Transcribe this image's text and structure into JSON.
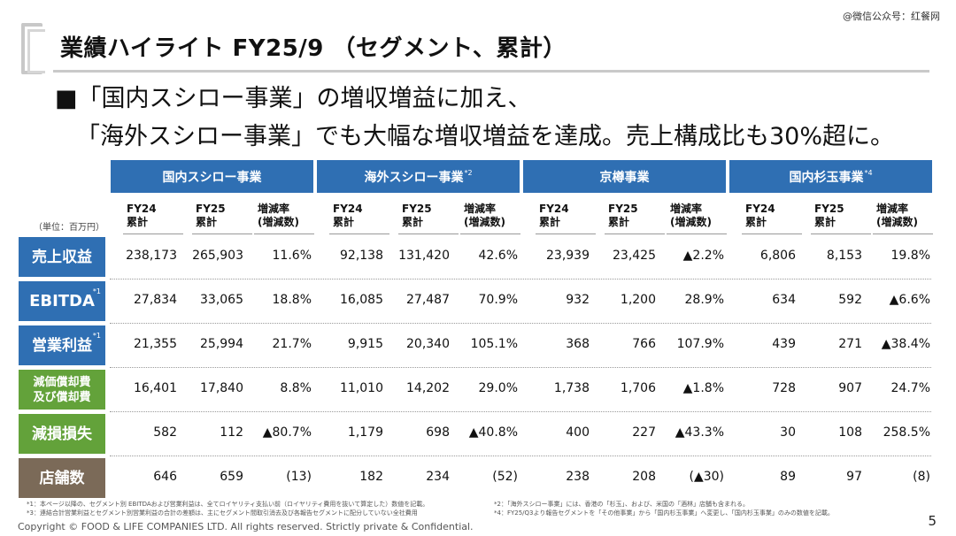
{
  "watermark": "@微信公众号：红餐网",
  "title": "業績ハイライト FY25/9 （セグメント、累計）",
  "headline": {
    "line1": "■「国内スシロー事業」の増収増益に加え、",
    "line2": "「海外スシロー事業」でも大幅な増収増益を達成。売上構成比も30%超に。"
  },
  "unit": "（単位：百万円）",
  "colors": {
    "segment_header": "#2f6fb3",
    "label_blue": "#2f6fb3",
    "label_green": "#63a23a",
    "label_brown": "#7b6a58"
  },
  "segments": [
    {
      "name": "国内スシロー事業",
      "note": ""
    },
    {
      "name": "海外スシロー事業",
      "note": "*2"
    },
    {
      "name": "京樽事業",
      "note": ""
    },
    {
      "name": "国内杉玉事業",
      "note": "*4"
    }
  ],
  "columns": [
    {
      "l1": "FY24",
      "l2": "累計"
    },
    {
      "l1": "FY25",
      "l2": "累計"
    },
    {
      "l1": "増減率",
      "l2": "(増減数)"
    }
  ],
  "rows": [
    {
      "label": "売上収益",
      "note": "",
      "color": "#2f6fb3",
      "values": [
        "238,173",
        "265,903",
        "11.6%",
        "92,138",
        "131,420",
        "42.6%",
        "23,939",
        "23,425",
        "▲2.2%",
        "6,806",
        "8,153",
        "19.8%"
      ]
    },
    {
      "label": "EBITDA",
      "note": "*1",
      "color": "#2f6fb3",
      "values": [
        "27,834",
        "33,065",
        "18.8%",
        "16,085",
        "27,487",
        "70.9%",
        "932",
        "1,200",
        "28.9%",
        "634",
        "592",
        "▲6.6%"
      ]
    },
    {
      "label": "営業利益",
      "note": "*1",
      "color": "#2f6fb3",
      "values": [
        "21,355",
        "25,994",
        "21.7%",
        "9,915",
        "20,340",
        "105.1%",
        "368",
        "766",
        "107.9%",
        "439",
        "271",
        "▲38.4%"
      ]
    },
    {
      "label": "減価償却費\n及び償却費",
      "note": "",
      "color": "#63a23a",
      "values": [
        "16,401",
        "17,840",
        "8.8%",
        "11,010",
        "14,202",
        "29.0%",
        "1,738",
        "1,706",
        "▲1.8%",
        "728",
        "907",
        "24.7%"
      ]
    },
    {
      "label": "減損損失",
      "note": "",
      "color": "#63a23a",
      "values": [
        "582",
        "112",
        "▲80.7%",
        "1,179",
        "698",
        "▲40.8%",
        "400",
        "227",
        "▲43.3%",
        "30",
        "108",
        "258.5%"
      ]
    },
    {
      "label": "店舗数",
      "note": "",
      "color": "#7b6a58",
      "values": [
        "646",
        "659",
        "(13)",
        "182",
        "234",
        "(52)",
        "238",
        "208",
        "(▲30)",
        "89",
        "97",
        "(8)"
      ]
    }
  ],
  "footnotes": [
    "*1：本ページ以降の、セグメント別 EBITDAおよび営業利益は、全てロイヤリティ支払い前（ロイヤリティ費用を抜いて算定した）数値を記載。",
    "*2：「海外スシロー事業」には、香港の「杉玉」、および、米国の「酒林」店舗も含まれる。",
    "*3：連結合計営業利益とセグメント別営業利益の合計の差額は、主にセグメント間取引消去及び各報告セグメントに配分していない全社費用",
    "*4：FY25/Q3より報告セグメントを「その他事業」から「国内杉玉事業」へ変更し、「国内杉玉事業」のみの数値を記載。"
  ],
  "copyright": "Copyright © FOOD & LIFE COMPANIES LTD. All rights reserved. Strictly private & Confidential.",
  "page_number": "5"
}
